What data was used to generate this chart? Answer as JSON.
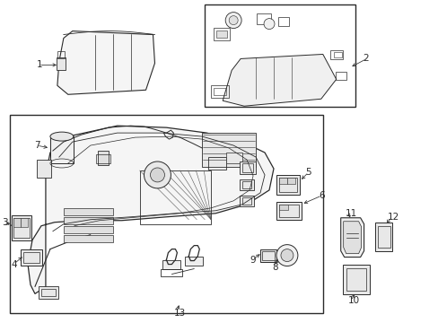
{
  "bg_color": "#ffffff",
  "line_color": "#2a2a2a",
  "figsize": [
    4.89,
    3.6
  ],
  "dpi": 100,
  "label_fontsize": 7.5
}
